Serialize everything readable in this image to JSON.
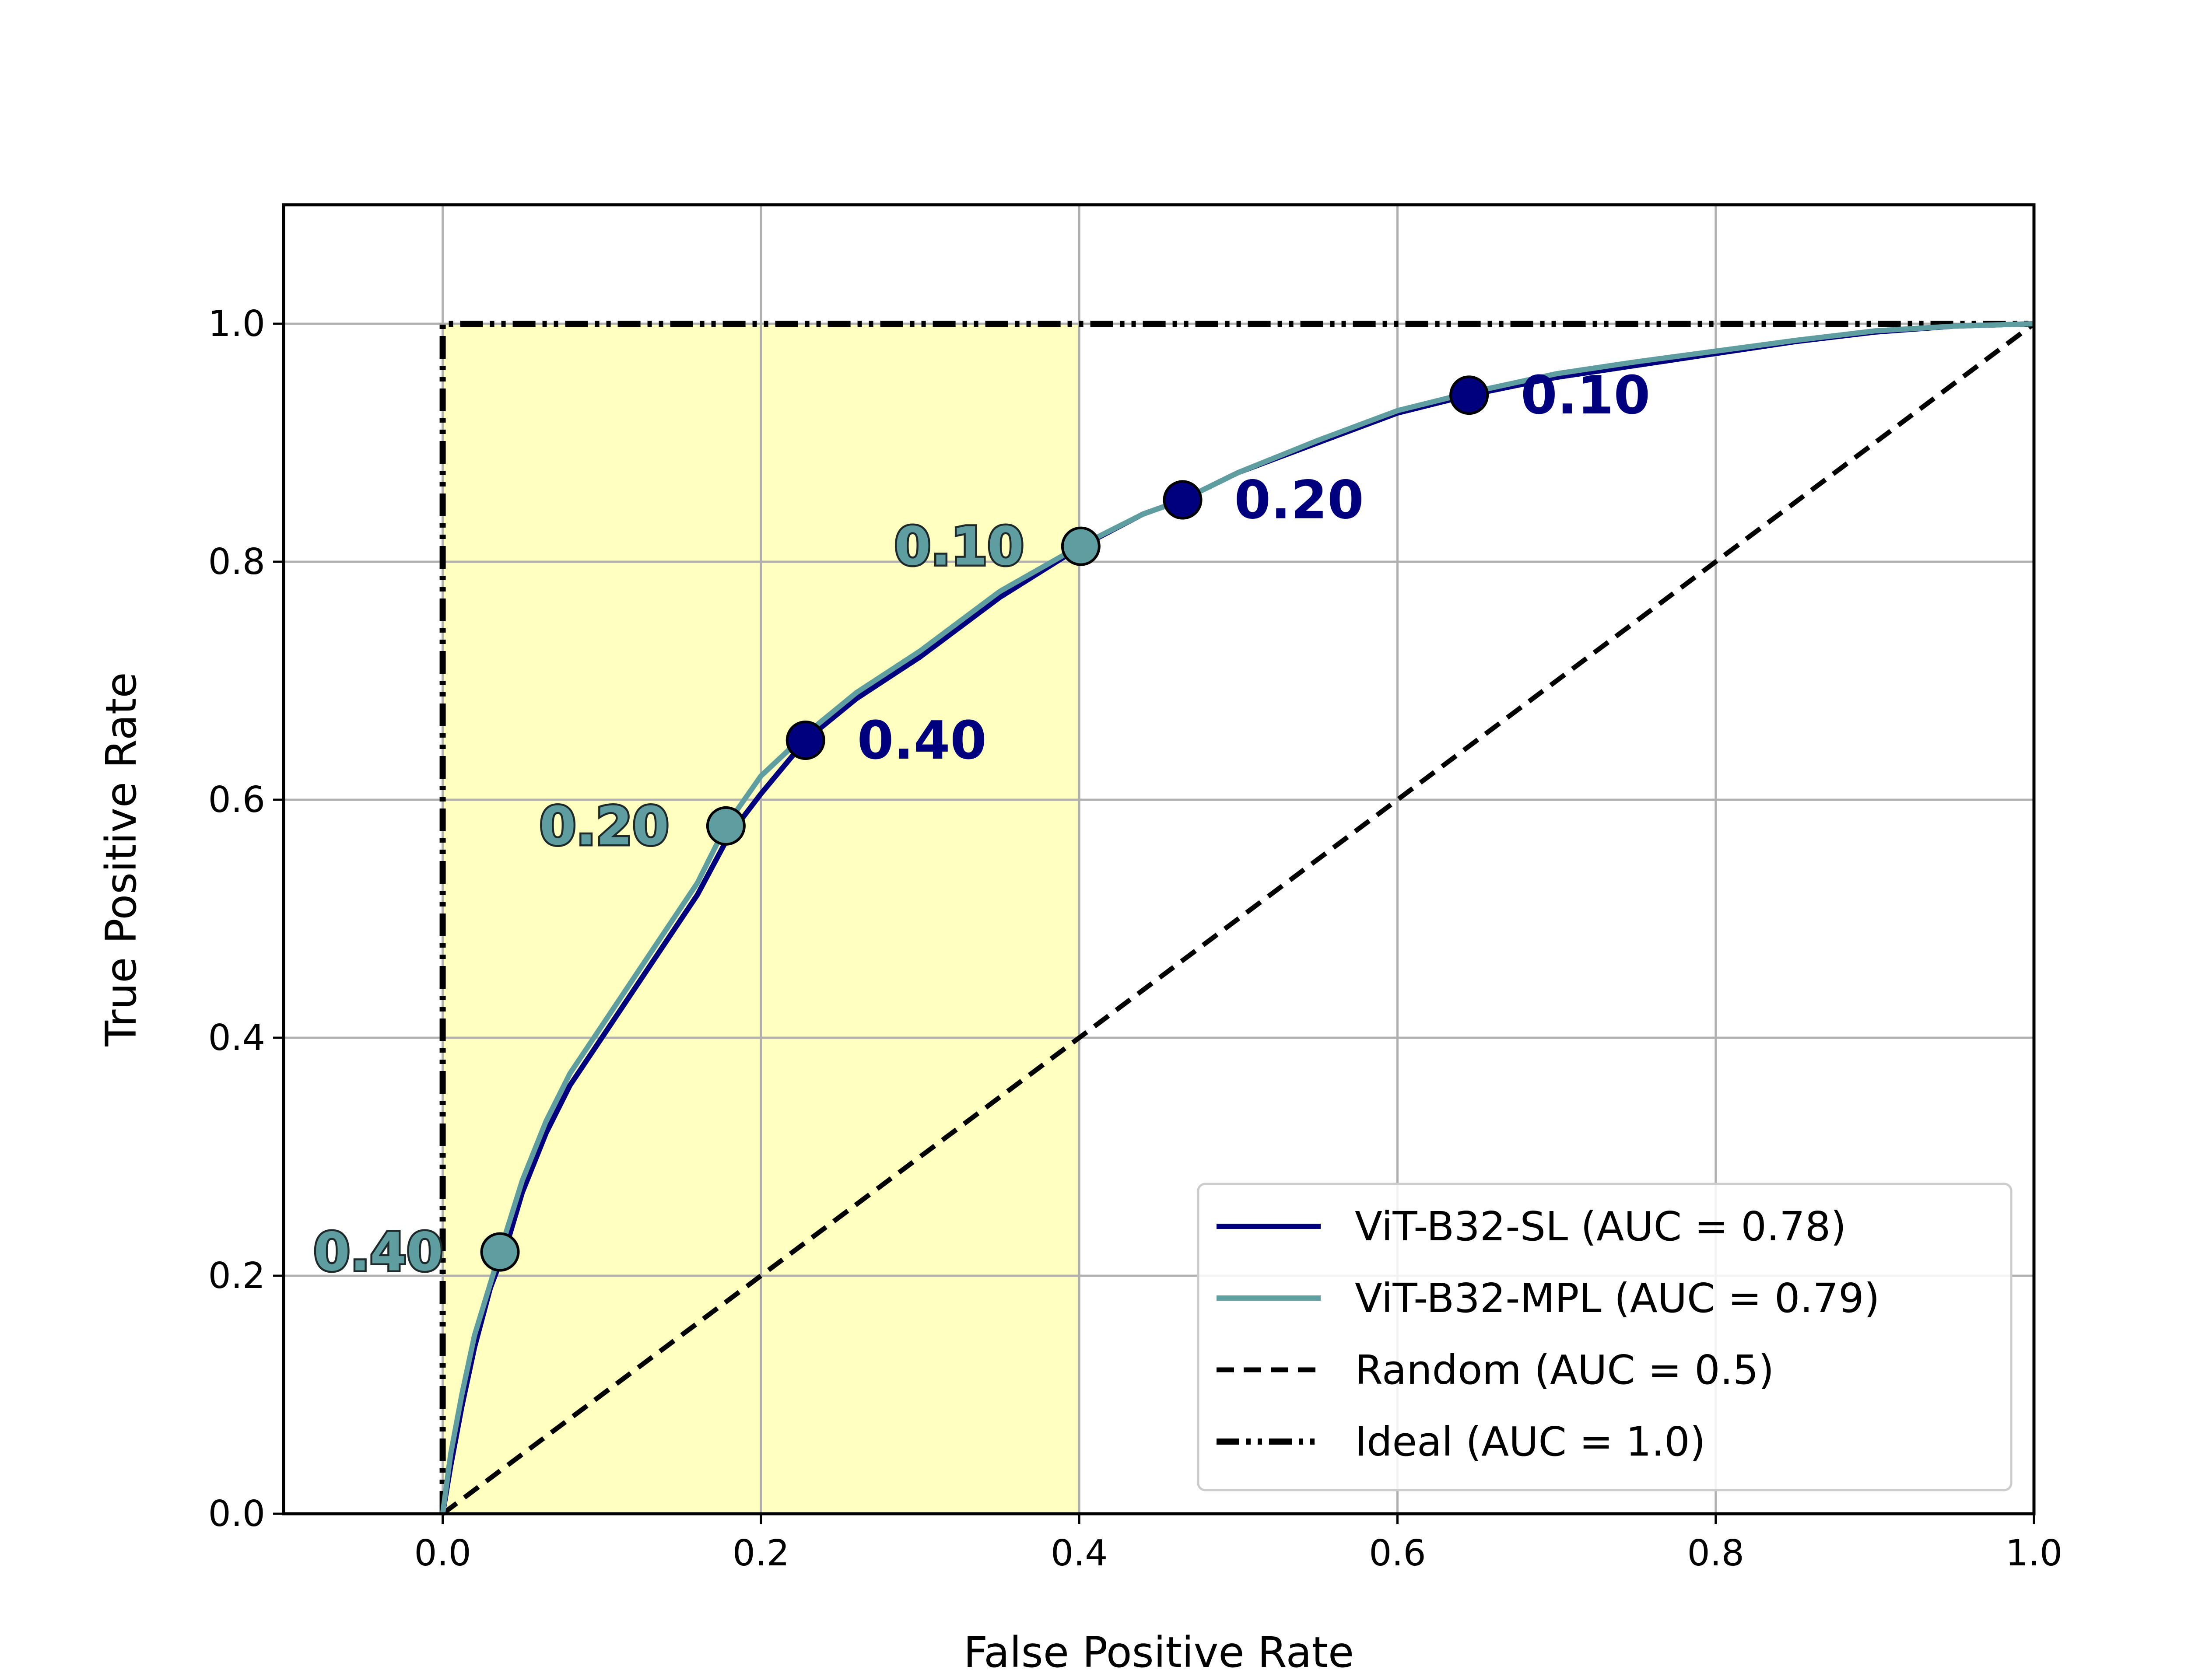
{
  "chart_data": {
    "type": "line",
    "title": "",
    "xlabel": "False Positive Rate",
    "ylabel": "True Positive Rate",
    "xlim": [
      -0.1,
      1.0
    ],
    "ylim": [
      0.0,
      1.1
    ],
    "xticks": [
      "0.0",
      "0.2",
      "0.4",
      "0.6",
      "0.8",
      "1.0"
    ],
    "yticks": [
      "0.0",
      "0.2",
      "0.4",
      "0.6",
      "0.8",
      "1.0"
    ],
    "grid": true,
    "legend_position": "lower-right",
    "shaded_region": {
      "x": [
        0.0,
        0.4
      ],
      "y": [
        0.0,
        1.0
      ],
      "color": "#ffffc0"
    },
    "series": [
      {
        "name": "ViT-B32-SL (AUC = 0.78)",
        "color": "#00007f",
        "style": "solid",
        "x": [
          0.0,
          0.005,
          0.012,
          0.02,
          0.03,
          0.04,
          0.05,
          0.065,
          0.08,
          0.1,
          0.12,
          0.14,
          0.16,
          0.18,
          0.2,
          0.228,
          0.26,
          0.3,
          0.35,
          0.4,
          0.44,
          0.465,
          0.5,
          0.55,
          0.6,
          0.645,
          0.7,
          0.75,
          0.8,
          0.85,
          0.9,
          0.95,
          1.0
        ],
        "y": [
          0.0,
          0.04,
          0.09,
          0.14,
          0.19,
          0.225,
          0.27,
          0.32,
          0.36,
          0.4,
          0.44,
          0.48,
          0.52,
          0.57,
          0.605,
          0.65,
          0.685,
          0.72,
          0.77,
          0.812,
          0.84,
          0.852,
          0.875,
          0.9,
          0.925,
          0.94,
          0.955,
          0.965,
          0.975,
          0.985,
          0.993,
          0.998,
          1.0
        ],
        "threshold_points": [
          {
            "x": 0.228,
            "y": 0.65,
            "label": "0.40"
          },
          {
            "x": 0.465,
            "y": 0.852,
            "label": "0.20"
          },
          {
            "x": 0.645,
            "y": 0.94,
            "label": "0.10"
          }
        ]
      },
      {
        "name": "ViT-B32-MPL (AUC = 0.79)",
        "color": "#5f9ea0",
        "style": "solid",
        "x": [
          0.0,
          0.005,
          0.012,
          0.02,
          0.036,
          0.05,
          0.065,
          0.08,
          0.1,
          0.12,
          0.14,
          0.16,
          0.178,
          0.2,
          0.228,
          0.26,
          0.3,
          0.35,
          0.4,
          0.44,
          0.465,
          0.5,
          0.55,
          0.6,
          0.645,
          0.7,
          0.75,
          0.8,
          0.85,
          0.9,
          0.95,
          1.0
        ],
        "y": [
          0.0,
          0.05,
          0.1,
          0.15,
          0.22,
          0.28,
          0.33,
          0.37,
          0.41,
          0.45,
          0.49,
          0.53,
          0.578,
          0.62,
          0.655,
          0.69,
          0.725,
          0.775,
          0.813,
          0.84,
          0.852,
          0.875,
          0.902,
          0.927,
          0.942,
          0.958,
          0.968,
          0.977,
          0.986,
          0.994,
          0.998,
          1.0
        ],
        "threshold_points": [
          {
            "x": 0.036,
            "y": 0.22,
            "label": "0.40"
          },
          {
            "x": 0.178,
            "y": 0.578,
            "label": "0.20"
          },
          {
            "x": 0.401,
            "y": 0.813,
            "label": "0.10"
          }
        ]
      },
      {
        "name": "Random (AUC = 0.5)",
        "color": "#000000",
        "style": "dashed",
        "x": [
          0.0,
          1.0
        ],
        "y": [
          0.0,
          1.0
        ]
      },
      {
        "name": "Ideal (AUC = 1.0)",
        "color": "#000000",
        "style": "dash-dot-dot",
        "x": [
          0.0,
          0.0,
          1.0
        ],
        "y": [
          0.0,
          1.0,
          1.0
        ]
      }
    ]
  }
}
